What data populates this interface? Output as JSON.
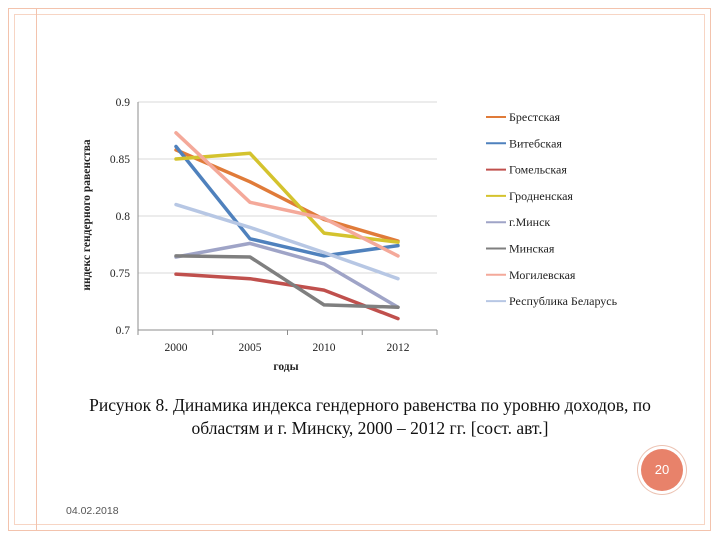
{
  "chart_data": {
    "type": "line",
    "title": "",
    "xlabel": "годы",
    "ylabel": "индекс гендерного равенства",
    "x": [
      2000,
      2005,
      2010,
      2012
    ],
    "x_ticks": [
      "2000",
      "2005",
      "2010",
      "2012"
    ],
    "ylim": [
      0.7,
      0.9
    ],
    "y_ticks": [
      "0.7",
      "0.75",
      "0.8",
      "0.85",
      "0.9"
    ],
    "grid": true,
    "legend_position": "right",
    "series": [
      {
        "name": "Брестская",
        "color": "#e07b39",
        "values": [
          0.858,
          0.83,
          0.797,
          0.778
        ]
      },
      {
        "name": "Витебская",
        "color": "#4f81bd",
        "values": [
          0.861,
          0.78,
          0.765,
          0.774
        ]
      },
      {
        "name": "Гомельская",
        "color": "#c0504d",
        "values": [
          0.749,
          0.745,
          0.735,
          0.71
        ]
      },
      {
        "name": "Гродненская",
        "color": "#d4c32e",
        "values": [
          0.85,
          0.855,
          0.785,
          0.777
        ]
      },
      {
        "name": "г.Минск",
        "color": "#9fa4c7",
        "values": [
          0.764,
          0.776,
          0.758,
          0.72
        ]
      },
      {
        "name": "Минская",
        "color": "#7f7f7f",
        "values": [
          0.765,
          0.764,
          0.722,
          0.72
        ]
      },
      {
        "name": "Могилевская",
        "color": "#f4a99a",
        "values": [
          0.873,
          0.812,
          0.798,
          0.765
        ]
      },
      {
        "name": "Республика Беларусь",
        "color": "#b7c7e4",
        "values": [
          0.81,
          0.79,
          0.768,
          0.745
        ]
      }
    ]
  },
  "caption": {
    "line1": "Рисунок 8. Динамика индекса гендерного равенства по уровню доходов, по",
    "line2": "областям и г. Минску, 2000 – 2012 гг. [сост. авт.]"
  },
  "slide_number": "20",
  "date": "04.02.2018",
  "colors": {
    "accent": "#e8826a",
    "frame": "#f3c3ad"
  }
}
